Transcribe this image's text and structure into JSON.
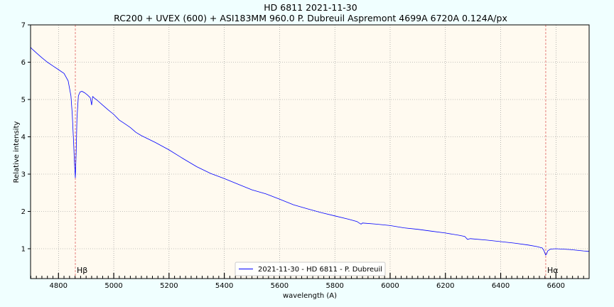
{
  "chart_data": {
    "type": "line",
    "title": "HD 6811 2021-11-30",
    "subtitle": "RC200 + UVEX (600) + ASI183MM 960.0 P. Dubreuil Aspremont 4699A 6720A 0.124A/px",
    "xlabel": "wavelength (A)",
    "ylabel": "Relative intensity",
    "xlim": [
      4699,
      6720
    ],
    "ylim": [
      0.2,
      7.0
    ],
    "xticks": [
      4800,
      5000,
      5200,
      5400,
      5600,
      5800,
      6000,
      6200,
      6400,
      6600
    ],
    "yticks": [
      1,
      2,
      3,
      4,
      5,
      6,
      7
    ],
    "grid": true,
    "legend_position": "bottom-center",
    "colors": {
      "series": "#0000ff",
      "reference_line": "#e06060",
      "plot_bg": "#fffaf0",
      "page_bg": "#f0ffff",
      "grid": "#888888"
    },
    "series": [
      {
        "name": "2021-11-30 - HD 6811 - P. Dubreuil",
        "x": [
          4699,
          4705,
          4720,
          4740,
          4760,
          4780,
          4800,
          4820,
          4835,
          4845,
          4850,
          4855,
          4858,
          4861,
          4864,
          4867,
          4872,
          4878,
          4885,
          4895,
          4905,
          4915,
          4920,
          4922,
          4924,
          4928,
          4940,
          4960,
          4980,
          5000,
          5020,
          5040,
          5060,
          5080,
          5100,
          5150,
          5200,
          5250,
          5300,
          5350,
          5400,
          5450,
          5500,
          5550,
          5600,
          5650,
          5700,
          5750,
          5800,
          5850,
          5880,
          5890,
          5895,
          5900,
          5950,
          6000,
          6050,
          6100,
          6150,
          6200,
          6250,
          6270,
          6280,
          6290,
          6350,
          6400,
          6450,
          6500,
          6530,
          6550,
          6556,
          6560,
          6563,
          6566,
          6570,
          6580,
          6600,
          6650,
          6700,
          6720
        ],
        "y": [
          6.4,
          6.35,
          6.25,
          6.12,
          6.0,
          5.9,
          5.8,
          5.7,
          5.5,
          5.1,
          4.6,
          3.8,
          3.3,
          2.9,
          3.6,
          4.5,
          5.1,
          5.2,
          5.22,
          5.18,
          5.12,
          5.05,
          4.85,
          5.0,
          5.08,
          5.05,
          4.98,
          4.85,
          4.72,
          4.6,
          4.45,
          4.35,
          4.25,
          4.12,
          4.03,
          3.85,
          3.65,
          3.42,
          3.2,
          3.02,
          2.88,
          2.73,
          2.58,
          2.47,
          2.33,
          2.18,
          2.07,
          1.97,
          1.88,
          1.79,
          1.73,
          1.68,
          1.66,
          1.69,
          1.66,
          1.62,
          1.56,
          1.52,
          1.47,
          1.42,
          1.36,
          1.33,
          1.25,
          1.27,
          1.23,
          1.19,
          1.15,
          1.1,
          1.06,
          1.02,
          0.96,
          0.88,
          0.83,
          0.86,
          0.94,
          0.99,
          1.0,
          0.98,
          0.94,
          0.93
        ]
      }
    ],
    "annotations": [
      {
        "x": 4861,
        "label": "Hβ"
      },
      {
        "x": 6563,
        "label": "Hα"
      }
    ]
  }
}
